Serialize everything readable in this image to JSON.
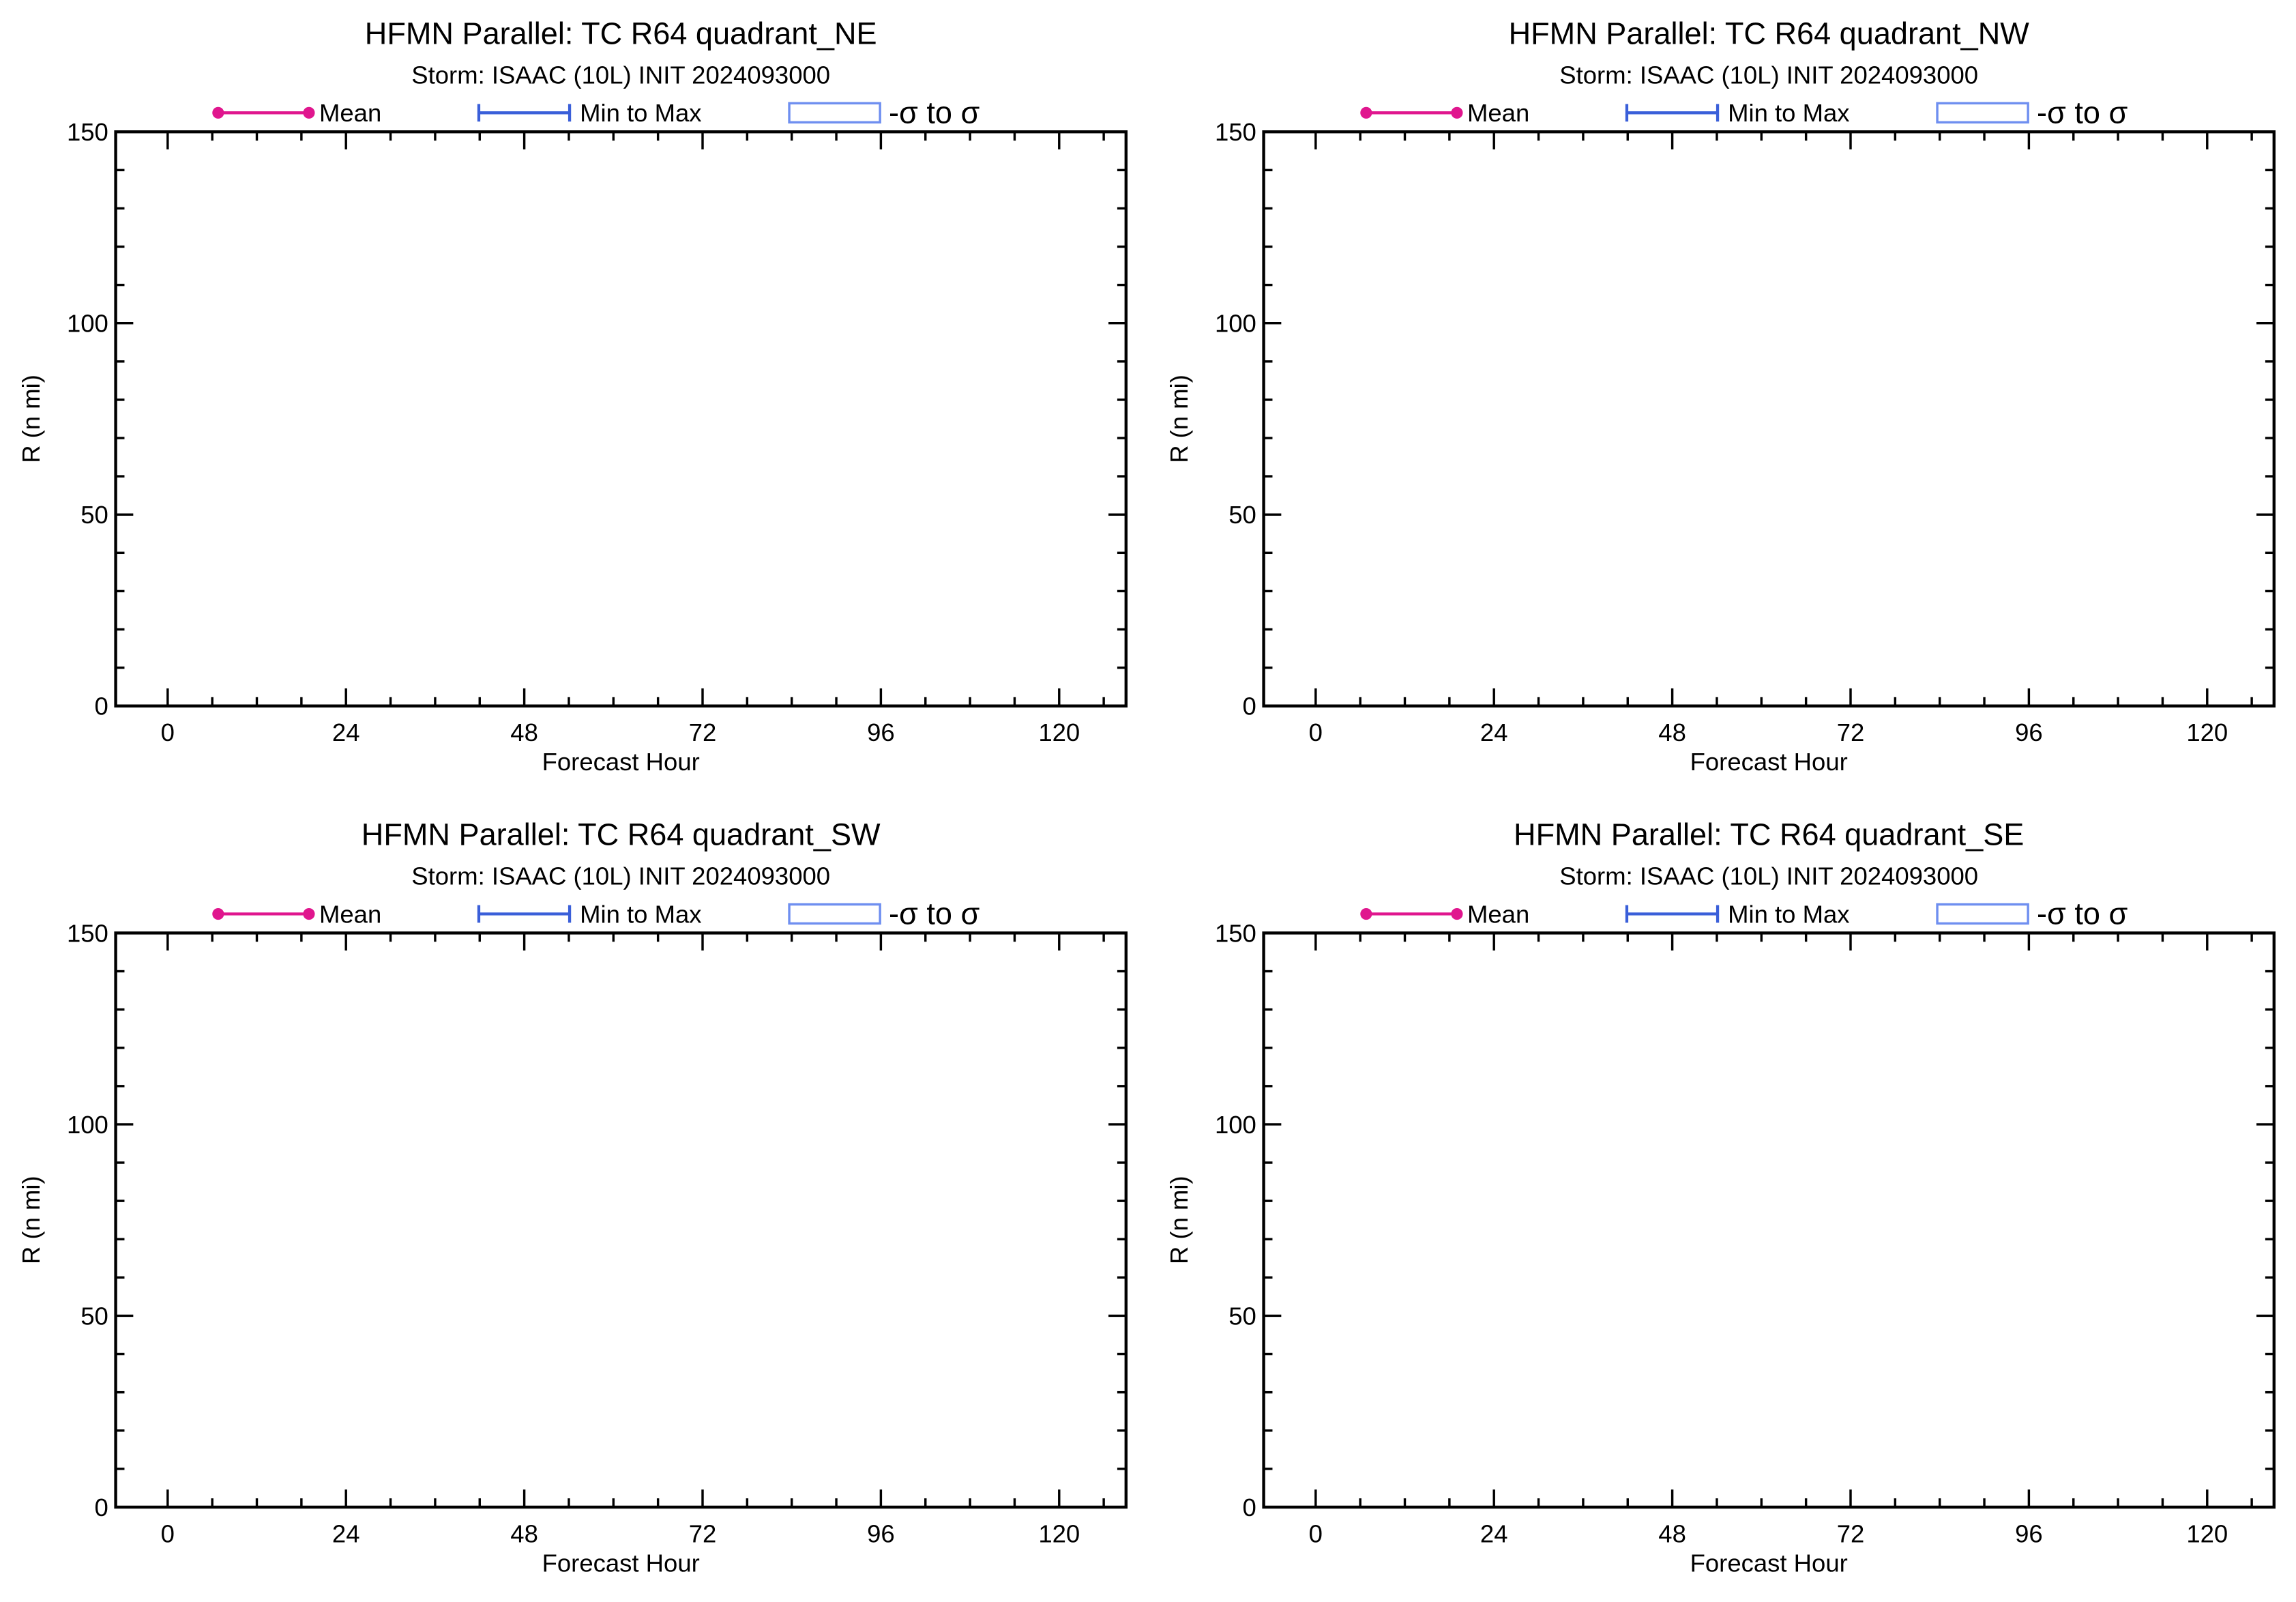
{
  "chart_data": [
    {
      "type": "line",
      "title": "HFMN Parallel: TC  R64 quadrant_NE",
      "subtitle": "Storm: ISAAC (10L) INIT 2024093000",
      "xlabel": "Forecast Hour",
      "ylabel": "R (n mi)",
      "xlim": [
        -7,
        129
      ],
      "ylim": [
        0,
        150
      ],
      "xticks": [
        "0",
        "24",
        "48",
        "72",
        "96",
        "120"
      ],
      "yticks": [
        "0",
        "50",
        "100",
        "150"
      ],
      "legend": [
        {
          "name": "Mean",
          "color": "#e0168e",
          "style": "line-dots"
        },
        {
          "name": "Min to Max",
          "color": "#3a5fd9",
          "style": "errorbar"
        },
        {
          "name": "-σ to σ",
          "color": "#6f8ff0",
          "style": "box"
        }
      ],
      "series": []
    },
    {
      "type": "line",
      "title": "HFMN Parallel: TC  R64 quadrant_NW",
      "subtitle": "Storm: ISAAC (10L) INIT 2024093000",
      "xlabel": "Forecast Hour",
      "ylabel": "R (n mi)",
      "xlim": [
        -7,
        129
      ],
      "ylim": [
        0,
        150
      ],
      "xticks": [
        "0",
        "24",
        "48",
        "72",
        "96",
        "120"
      ],
      "yticks": [
        "0",
        "50",
        "100",
        "150"
      ],
      "legend": [
        {
          "name": "Mean",
          "color": "#e0168e",
          "style": "line-dots"
        },
        {
          "name": "Min to Max",
          "color": "#3a5fd9",
          "style": "errorbar"
        },
        {
          "name": "-σ to σ",
          "color": "#6f8ff0",
          "style": "box"
        }
      ],
      "series": []
    },
    {
      "type": "line",
      "title": "HFMN Parallel: TC  R64 quadrant_SW",
      "subtitle": "Storm: ISAAC (10L) INIT 2024093000",
      "xlabel": "Forecast Hour",
      "ylabel": "R (n mi)",
      "xlim": [
        -7,
        129
      ],
      "ylim": [
        0,
        150
      ],
      "xticks": [
        "0",
        "24",
        "48",
        "72",
        "96",
        "120"
      ],
      "yticks": [
        "0",
        "50",
        "100",
        "150"
      ],
      "legend": [
        {
          "name": "Mean",
          "color": "#e0168e",
          "style": "line-dots"
        },
        {
          "name": "Min to Max",
          "color": "#3a5fd9",
          "style": "errorbar"
        },
        {
          "name": "-σ to σ",
          "color": "#6f8ff0",
          "style": "box"
        }
      ],
      "series": []
    },
    {
      "type": "line",
      "title": "HFMN Parallel: TC  R64 quadrant_SE",
      "subtitle": "Storm: ISAAC (10L) INIT 2024093000",
      "xlabel": "Forecast Hour",
      "ylabel": "R (n mi)",
      "xlim": [
        -7,
        129
      ],
      "ylim": [
        0,
        150
      ],
      "xticks": [
        "0",
        "24",
        "48",
        "72",
        "96",
        "120"
      ],
      "yticks": [
        "0",
        "50",
        "100",
        "150"
      ],
      "legend": [
        {
          "name": "Mean",
          "color": "#e0168e",
          "style": "line-dots"
        },
        {
          "name": "Min to Max",
          "color": "#3a5fd9",
          "style": "errorbar"
        },
        {
          "name": "-σ to σ",
          "color": "#6f8ff0",
          "style": "box"
        }
      ],
      "series": []
    }
  ]
}
